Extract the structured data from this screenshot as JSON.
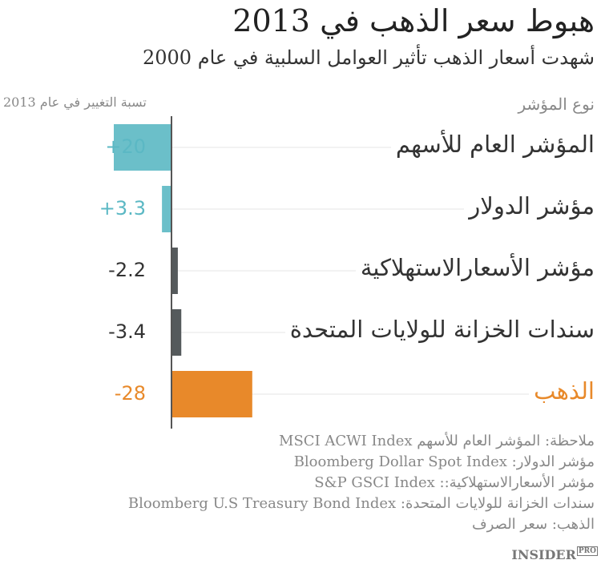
{
  "title": "هبوط سعر الذهب في 2013",
  "subtitle": "شهدت أسعار الذهب تأثير العوامل السلبية في عام 2000",
  "chart_data": {
    "type": "bar",
    "orientation": "horizontal",
    "xlabel": "تسبة التغيير في عام 2013",
    "ylabel": "نوع المؤشر",
    "categories": [
      "المؤشر العام للأسهم",
      "مؤشر الدولار",
      "مؤشر الأسعارالاستهلاكية",
      "سندات الخزانة للولايات المتحدة",
      "الذهب"
    ],
    "value_labels": [
      "+20",
      "+3.3",
      "-2.2",
      "-3.4",
      "-28"
    ],
    "values": [
      20,
      3.3,
      -2.2,
      -3.4,
      -28
    ],
    "colors": [
      "#6bbfc9",
      "#6bbfc9",
      "#555a5c",
      "#555a5c",
      "#e8892a"
    ],
    "label_colors": [
      "#5bb8c4",
      "#5bb8c4",
      "#333333",
      "#333333",
      "#e8892a"
    ],
    "cat_colors": [
      "#333333",
      "#333333",
      "#333333",
      "#333333",
      "#e8892a"
    ],
    "grid": false
  },
  "notes": [
    "ملاحظة: المؤشر العام للأسهم MSCI ACWI Index",
    "مؤشر الدولار: Bloomberg Dollar Spot Index",
    "مؤشر الأسعارالاستهلاكية:: S&P GSCI Index",
    "سندات الخزانة للولايات المتحدة: Bloomberg U.S Treasury Bond Index",
    "الذهب: سعر الصرف"
  ],
  "logo": {
    "main": "INSIDER",
    "sub": "PRO"
  }
}
